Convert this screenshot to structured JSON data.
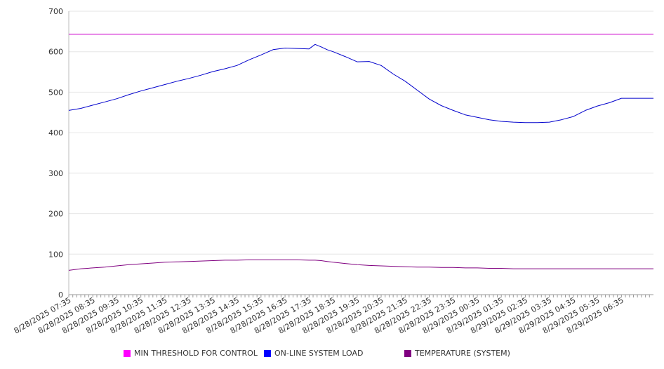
{
  "chart_data": {
    "type": "line",
    "title": "",
    "xlabel": "",
    "ylabel": "",
    "ylim": [
      0,
      700
    ],
    "yticks": [
      0,
      100,
      200,
      300,
      400,
      500,
      600,
      700
    ],
    "grid": true,
    "legend_position": "bottom",
    "x_tick_labels": [
      "8/28/2025 07:35",
      "8/28/2025 08:35",
      "8/28/2025 09:35",
      "8/28/2025 10:35",
      "8/28/2025 11:35",
      "8/28/2025 12:35",
      "8/28/2025 13:35",
      "8/28/2025 14:35",
      "8/28/2025 15:35",
      "8/28/2025 16:35",
      "8/28/2025 17:35",
      "8/28/2025 18:35",
      "8/28/2025 19:35",
      "8/28/2025 20:35",
      "8/28/2025 21:35",
      "8/28/2025 22:35",
      "8/28/2025 23:35",
      "8/29/2025 00:35",
      "8/29/2025 01:35",
      "8/29/2025 02:35",
      "8/29/2025 03:35",
      "8/29/2025 04:35",
      "8/29/2025 05:35",
      "8/29/2025 06:35"
    ],
    "x_hours": [
      0,
      0.5,
      1,
      1.5,
      2,
      2.5,
      3,
      3.5,
      4,
      4.5,
      5,
      5.5,
      6,
      6.5,
      7,
      7.5,
      8,
      8.5,
      9,
      9.5,
      10,
      10.25,
      10.5,
      10.75,
      11,
      11.5,
      12,
      12.5,
      13,
      13.5,
      14,
      14.5,
      15,
      15.5,
      16,
      16.5,
      17,
      17.5,
      18,
      18.5,
      19,
      19.5,
      20,
      20.5,
      21,
      21.5,
      22,
      22.5,
      23,
      23.5,
      24,
      24.333
    ],
    "series": [
      {
        "name": "MIN THRESHOLD FOR CONTROL",
        "color": "#cc00cc",
        "values": [
          643,
          643,
          643,
          643,
          643,
          643,
          643,
          643,
          643,
          643,
          643,
          643,
          643,
          643,
          643,
          643,
          643,
          643,
          643,
          643,
          643,
          643,
          643,
          643,
          643,
          643,
          643,
          643,
          643,
          643,
          643,
          643,
          643,
          643,
          643,
          643,
          643,
          643,
          643,
          643,
          643,
          643,
          643,
          643,
          643,
          643,
          643,
          643,
          643,
          643,
          643,
          643
        ]
      },
      {
        "name": "ON-LINE SYSTEM LOAD",
        "color": "#0000cc",
        "values": [
          455,
          460,
          468,
          476,
          484,
          494,
          503,
          511,
          519,
          527,
          534,
          542,
          551,
          558,
          566,
          580,
          592,
          605,
          609,
          608,
          607,
          618,
          612,
          605,
          600,
          588,
          575,
          576,
          566,
          545,
          527,
          505,
          483,
          467,
          455,
          444,
          438,
          432,
          428,
          426,
          425,
          425,
          426,
          432,
          440,
          455,
          466,
          474,
          485,
          485,
          485,
          485
        ]
      },
      {
        "name": "TEMPERATURE (SYSTEM)",
        "color": "#800080",
        "values": [
          60,
          64,
          66,
          68,
          71,
          74,
          76,
          78,
          80,
          81,
          82,
          83,
          84,
          85,
          85,
          86,
          86,
          86,
          86,
          86,
          85,
          85,
          84,
          82,
          80,
          77,
          74,
          72,
          71,
          70,
          69,
          68,
          68,
          67,
          67,
          66,
          66,
          65,
          65,
          64,
          64,
          64,
          64,
          64,
          64,
          64,
          64,
          64,
          64,
          64,
          64,
          64
        ]
      }
    ]
  }
}
